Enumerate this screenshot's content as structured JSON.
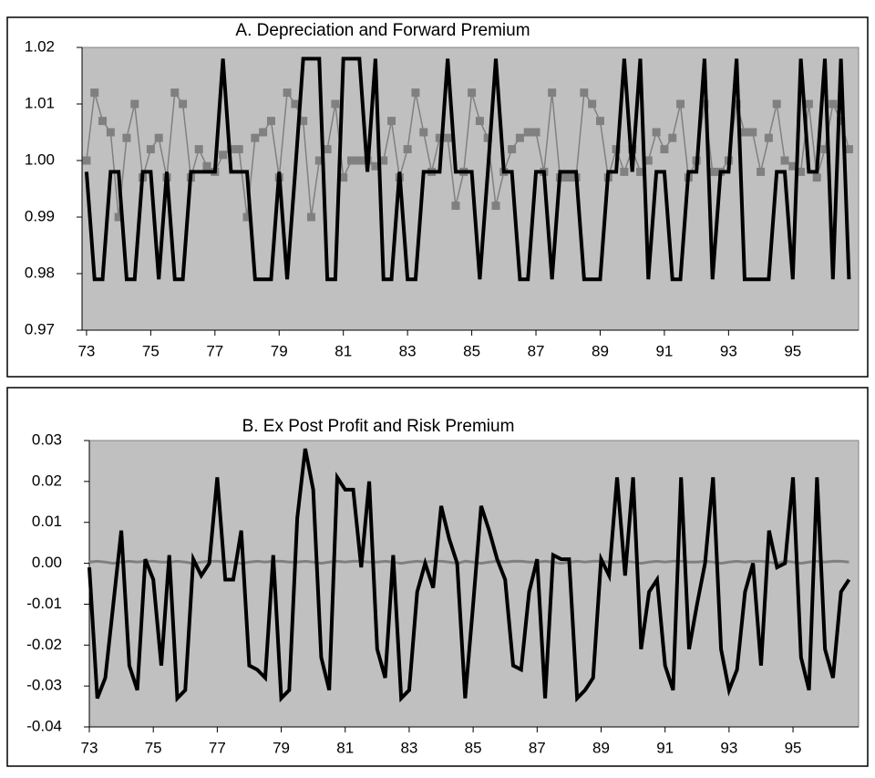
{
  "chart_data": [
    {
      "type": "line",
      "title": "A. Depreciation and Forward Premium",
      "x": [
        73,
        73.25,
        73.5,
        73.75,
        74,
        74.25,
        74.5,
        74.75,
        75,
        75.25,
        75.5,
        75.75,
        76,
        76.25,
        76.5,
        76.75,
        77,
        77.25,
        77.5,
        77.75,
        78,
        78.25,
        78.5,
        78.75,
        79,
        79.25,
        79.5,
        79.75,
        80,
        80.25,
        80.5,
        80.75,
        81,
        81.25,
        81.5,
        81.75,
        82,
        82.25,
        82.5,
        82.75,
        83,
        83.25,
        83.5,
        83.75,
        84,
        84.25,
        84.5,
        84.75,
        85,
        85.25,
        85.5,
        85.75,
        86,
        86.25,
        86.5,
        86.75,
        87,
        87.25,
        87.5,
        87.75,
        88,
        88.25,
        88.5,
        88.75,
        89,
        89.25,
        89.5,
        89.75,
        90,
        90.25,
        90.5,
        90.75,
        91,
        91.25,
        91.5,
        91.75,
        92,
        92.25,
        92.5,
        92.75,
        93,
        93.25,
        93.5,
        93.75,
        94,
        94.25,
        94.5,
        94.75,
        95,
        95.25,
        95.5,
        95.75,
        96,
        96.25,
        96.5,
        96.75
      ],
      "series": [
        {
          "color": "#000000",
          "values": [
            0.998,
            0.979,
            0.979,
            0.998,
            0.998,
            0.979,
            0.979,
            0.998,
            0.998,
            0.979,
            0.998,
            0.979,
            0.979,
            0.998,
            0.998,
            0.998,
            0.998,
            1.018,
            0.998,
            0.998,
            0.998,
            0.979,
            0.979,
            0.979,
            0.998,
            0.979,
            0.998,
            1.018,
            1.018,
            1.018,
            0.979,
            0.979,
            1.018,
            1.018,
            1.018,
            0.998,
            1.018,
            0.979,
            0.979,
            0.998,
            0.979,
            0.979,
            0.998,
            0.998,
            0.998,
            1.018,
            0.998,
            0.998,
            0.998,
            0.979,
            0.998,
            1.018,
            0.998,
            0.998,
            0.979,
            0.979,
            0.998,
            0.998,
            0.979,
            0.998,
            0.998,
            0.998,
            0.979,
            0.979,
            0.979,
            0.998,
            0.998,
            1.018,
            0.998,
            1.018,
            0.979,
            0.998,
            0.998,
            0.979,
            0.979,
            0.998,
            0.998,
            1.018,
            0.979,
            0.998,
            0.998,
            1.018,
            0.979,
            0.979,
            0.979,
            0.979,
            0.998,
            0.998,
            0.979,
            1.018,
            0.998,
            0.998,
            1.018,
            0.979,
            1.018,
            0.979
          ]
        },
        {
          "color": "#808080",
          "marker": "square",
          "values": [
            1.0,
            1.012,
            1.007,
            1.005,
            0.99,
            1.004,
            1.01,
            0.997,
            1.002,
            1.004,
            0.997,
            1.012,
            1.01,
            0.997,
            1.002,
            0.999,
            0.998,
            1.001,
            1.002,
            1.002,
            0.99,
            1.004,
            1.005,
            1.007,
            0.997,
            1.012,
            1.01,
            1.007,
            0.99,
            1.0,
            1.002,
            1.01,
            0.997,
            1.0,
            1.0,
            1.0,
            0.999,
            1.0,
            1.007,
            0.997,
            1.002,
            1.012,
            1.005,
            0.998,
            1.004,
            1.004,
            0.992,
            0.998,
            1.012,
            1.007,
            1.004,
            0.992,
            0.998,
            1.002,
            1.004,
            1.005,
            1.005,
            0.998,
            1.012,
            0.997,
            0.997,
            0.997,
            1.012,
            1.01,
            1.007,
            0.997,
            1.002,
            0.998,
            1.002,
            0.998,
            1.0,
            1.005,
            1.002,
            1.004,
            1.01,
            0.997,
            1.0,
            1.01,
            0.998,
            0.998,
            1.0,
            1.01,
            1.005,
            1.005,
            0.998,
            1.004,
            1.01,
            1.0,
            0.999,
            0.998,
            1.01,
            0.997,
            1.002,
            1.01,
            1.007,
            1.002
          ]
        }
      ],
      "xlim": [
        72.86,
        97.05
      ],
      "xticks": [
        73,
        75,
        77,
        79,
        81,
        83,
        85,
        87,
        89,
        91,
        93,
        95
      ],
      "ylim": [
        0.97,
        1.02
      ],
      "yticks": [
        0.97,
        0.98,
        0.99,
        {
          "value": 1.0,
          "label": "1.00"
        },
        1.01,
        1.02
      ]
    },
    {
      "type": "line",
      "title": "B. Ex Post Profit and Risk Premium",
      "x": [
        73,
        73.25,
        73.5,
        73.75,
        74,
        74.25,
        74.5,
        74.75,
        75,
        75.25,
        75.5,
        75.75,
        76,
        76.25,
        76.5,
        76.75,
        77,
        77.25,
        77.5,
        77.75,
        78,
        78.25,
        78.5,
        78.75,
        79,
        79.25,
        79.5,
        79.75,
        80,
        80.25,
        80.5,
        80.75,
        81,
        81.25,
        81.5,
        81.75,
        82,
        82.25,
        82.5,
        82.75,
        83,
        83.25,
        83.5,
        83.75,
        84,
        84.25,
        84.5,
        84.75,
        85,
        85.25,
        85.5,
        85.75,
        86,
        86.25,
        86.5,
        86.75,
        87,
        87.25,
        87.5,
        87.75,
        88,
        88.25,
        88.5,
        88.75,
        89,
        89.25,
        89.5,
        89.75,
        90,
        90.25,
        90.5,
        90.75,
        91,
        91.25,
        91.5,
        91.75,
        92,
        92.25,
        92.5,
        92.75,
        93,
        93.25,
        93.5,
        93.75,
        94,
        94.25,
        94.5,
        94.75,
        95,
        95.25,
        95.5,
        95.75,
        96,
        96.25,
        96.5,
        96.75
      ],
      "series": [
        {
          "color": "#000000",
          "values": [
            -0.001,
            -0.033,
            -0.028,
            -0.01,
            0.008,
            -0.025,
            -0.031,
            0.001,
            -0.004,
            -0.025,
            0.002,
            -0.033,
            -0.031,
            0.001,
            -0.003,
            0.0,
            0.021,
            -0.004,
            -0.004,
            0.008,
            -0.025,
            -0.026,
            -0.028,
            0.002,
            -0.033,
            -0.031,
            0.011,
            0.028,
            0.018,
            -0.023,
            -0.031,
            0.021,
            0.018,
            0.018,
            -0.001,
            0.02,
            -0.021,
            -0.028,
            0.002,
            -0.033,
            -0.031,
            -0.007,
            0.0,
            -0.006,
            0.014,
            0.006,
            0.0,
            -0.033,
            -0.01,
            0.014,
            0.008,
            0.001,
            -0.004,
            -0.025,
            -0.026,
            -0.007,
            0.001,
            -0.033,
            0.002,
            0.001,
            0.001,
            -0.033,
            -0.031,
            -0.028,
            0.001,
            -0.003,
            0.021,
            -0.003,
            0.021,
            -0.021,
            -0.007,
            -0.004,
            -0.025,
            -0.031,
            0.021,
            -0.021,
            -0.01,
            0.0,
            0.021,
            -0.021,
            -0.031,
            -0.026,
            -0.007,
            0.0,
            -0.025,
            0.008,
            -0.001,
            0.0,
            0.021,
            -0.023,
            -0.031,
            0.021,
            -0.021,
            -0.028,
            -0.007,
            -0.004
          ]
        },
        {
          "color": "#808080",
          "values": [
            0.0003,
            0.0005,
            0.0003,
            0,
            0.0003,
            0.0005,
            0.0003,
            0.0005,
            0.0005,
            0.0003,
            0.0003,
            0.0005,
            0.0003,
            0,
            0.0003,
            0.0005,
            0.0005,
            0.0003,
            0.0003,
            0,
            0.0003,
            0.0005,
            0.0003,
            0.0005,
            0.0005,
            0.0003,
            0.0003,
            0.0005,
            0.0003,
            0,
            0.0003,
            0.0005,
            0.0003,
            0.0005,
            0.0005,
            0.0003,
            0.0003,
            0.0005,
            0.0003,
            0,
            0.0003,
            0.0005,
            0.0003,
            0.0005,
            0.0005,
            0.0003,
            0,
            0.0005,
            0.0003,
            0,
            0.0003,
            0.0005,
            0.0003,
            0.0005,
            0.0005,
            0.0003,
            0.0003,
            0.0005,
            0.0003,
            0,
            0.0003,
            0.0005,
            0.0003,
            0.0005,
            0.0005,
            0.0003,
            0.0003,
            0.0005,
            0.0003,
            0,
            0.0003,
            0.0005,
            0.0003,
            0.0005,
            0.0005,
            0.0003,
            0.0003,
            0.0005,
            0.0003,
            0,
            0.0003,
            0.0005,
            0.0003,
            0.0005,
            0.0005,
            0.0003,
            0,
            0.0005,
            0.0003,
            0,
            0.0003,
            0.0005,
            0.0003,
            0.0005,
            0.0005,
            0.0003
          ]
        }
      ],
      "xlim": [
        73.0,
        97.05
      ],
      "xticks": [
        73,
        75,
        77,
        79,
        81,
        83,
        85,
        87,
        89,
        91,
        93,
        95
      ],
      "ylim": [
        -0.04,
        0.03
      ],
      "yticks": [
        -0.04,
        -0.03,
        -0.02,
        -0.01,
        {
          "value": 0.0,
          "label": "0.00"
        },
        0.01,
        0.02,
        0.03
      ]
    }
  ]
}
